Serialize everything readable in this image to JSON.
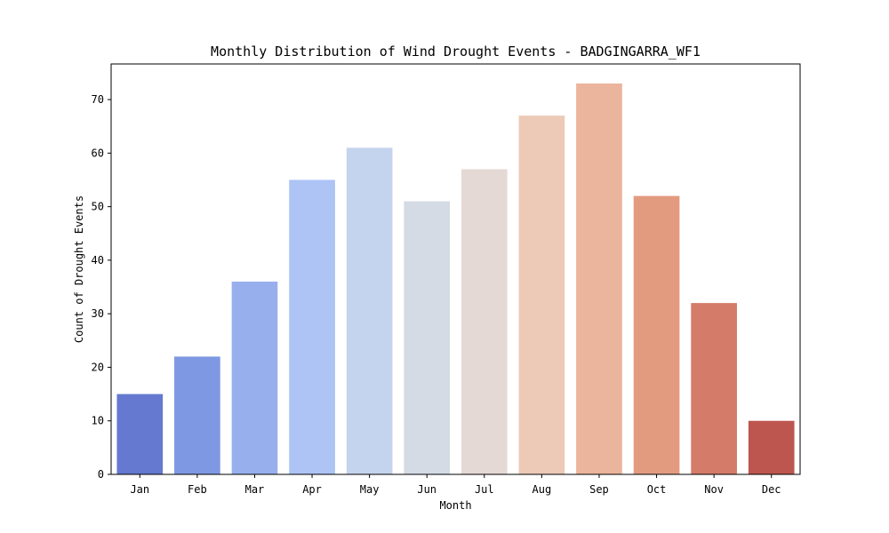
{
  "chart_data": {
    "type": "bar",
    "title": "Monthly Distribution of Wind Drought Events - BADGINGARRA_WF1",
    "xlabel": "Month",
    "ylabel": "Count of Drought Events",
    "categories": [
      "Jan",
      "Feb",
      "Mar",
      "Apr",
      "May",
      "Jun",
      "Jul",
      "Aug",
      "Sep",
      "Oct",
      "Nov",
      "Dec"
    ],
    "values": [
      15,
      22,
      36,
      55,
      61,
      51,
      57,
      67,
      73,
      52,
      32,
      10
    ],
    "colors": [
      "#6479cf",
      "#7e98e3",
      "#97b0ed",
      "#adc4f4",
      "#c4d4ee",
      "#d4dbe4",
      "#e4d9d4",
      "#eccab7",
      "#ebb49c",
      "#e39b80",
      "#d47b69",
      "#be5650"
    ],
    "ylim": [
      0,
      76.65
    ],
    "yticks": [
      0,
      10,
      20,
      30,
      40,
      50,
      60,
      70
    ],
    "grid": false,
    "legend": "none"
  }
}
